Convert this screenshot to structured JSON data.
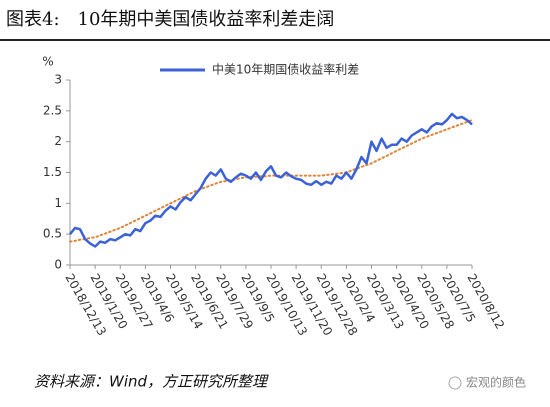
{
  "chart_data": {
    "type": "line",
    "title": "图表4:　10年期中美国债收益率利差走阔",
    "y_label": "%",
    "source": "资料来源：Wind，方正研究所整理",
    "watermark": "宏观的颜色",
    "categories": [
      "2018/12/13",
      null,
      null,
      null,
      null,
      "2019/1/20",
      null,
      null,
      null,
      null,
      "2019/2/27",
      null,
      null,
      null,
      null,
      "2019/4/6",
      null,
      null,
      null,
      null,
      "2019/5/14",
      null,
      null,
      null,
      null,
      "2019/6/21",
      null,
      null,
      null,
      null,
      "2019/7/29",
      null,
      null,
      null,
      null,
      "2019/9/5",
      null,
      null,
      null,
      null,
      "2019/10/13",
      null,
      null,
      null,
      null,
      "2019/11/20",
      null,
      null,
      null,
      null,
      "2019/12/28",
      null,
      null,
      null,
      null,
      "2020/2/4",
      null,
      null,
      null,
      null,
      "2020/3/13",
      null,
      null,
      null,
      null,
      "2020/4/20",
      null,
      null,
      null,
      null,
      "2020/5/28",
      null,
      null,
      null,
      null,
      "2020/7/5",
      null,
      null,
      null,
      null,
      "2020/8/12"
    ],
    "series": [
      {
        "name": "中美10年期国债收益率利差",
        "color": "#3b62d6",
        "values": [
          0.5,
          0.6,
          0.58,
          0.42,
          0.35,
          0.3,
          0.38,
          0.36,
          0.42,
          0.4,
          0.45,
          0.5,
          0.48,
          0.58,
          0.55,
          0.68,
          0.72,
          0.8,
          0.78,
          0.88,
          0.95,
          0.9,
          1.02,
          1.1,
          1.05,
          1.15,
          1.25,
          1.4,
          1.5,
          1.45,
          1.55,
          1.4,
          1.35,
          1.42,
          1.48,
          1.45,
          1.4,
          1.5,
          1.38,
          1.52,
          1.6,
          1.45,
          1.42,
          1.5,
          1.44,
          1.4,
          1.38,
          1.32,
          1.3,
          1.36,
          1.3,
          1.35,
          1.32,
          1.45,
          1.4,
          1.5,
          1.4,
          1.55,
          1.75,
          1.65,
          2.0,
          1.85,
          2.05,
          1.9,
          1.95,
          1.95,
          2.05,
          2.0,
          2.1,
          2.15,
          2.2,
          2.15,
          2.25,
          2.3,
          2.28,
          2.35,
          2.45,
          2.38,
          2.4,
          2.35,
          2.28
        ]
      }
    ],
    "trend": {
      "color": "#e0843a",
      "values": [
        0.38,
        0.39,
        0.41,
        0.42,
        0.44,
        0.45,
        0.48,
        0.51,
        0.54,
        0.57,
        0.6,
        0.64,
        0.68,
        0.72,
        0.76,
        0.8,
        0.84,
        0.88,
        0.92,
        0.96,
        1.0,
        1.04,
        1.08,
        1.12,
        1.16,
        1.2,
        1.23,
        1.26,
        1.29,
        1.32,
        1.35,
        1.36,
        1.38,
        1.39,
        1.41,
        1.42,
        1.43,
        1.43,
        1.44,
        1.44,
        1.45,
        1.45,
        1.45,
        1.45,
        1.45,
        1.45,
        1.45,
        1.45,
        1.45,
        1.45,
        1.45,
        1.46,
        1.47,
        1.48,
        1.49,
        1.5,
        1.53,
        1.56,
        1.59,
        1.62,
        1.65,
        1.69,
        1.73,
        1.77,
        1.81,
        1.85,
        1.89,
        1.93,
        1.97,
        2.01,
        2.05,
        2.08,
        2.11,
        2.14,
        2.17,
        2.2,
        2.23,
        2.26,
        2.29,
        2.32,
        2.35
      ]
    },
    "ylim": [
      0,
      3
    ],
    "yticks": [
      0,
      0.5,
      1,
      1.5,
      2,
      2.5,
      3
    ],
    "grid": false
  }
}
